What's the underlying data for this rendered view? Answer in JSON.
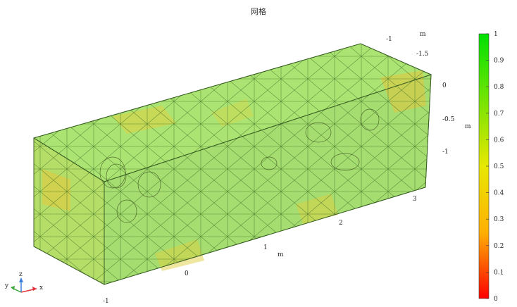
{
  "figure": {
    "title": "网格"
  },
  "axes": {
    "x": {
      "unit": "m",
      "ticks": [
        "-1",
        "0",
        "1",
        "2",
        "3"
      ]
    },
    "y": {
      "unit": "m",
      "ticks": [
        "-1",
        "-1.5"
      ]
    },
    "z": {
      "unit": "m",
      "ticks": [
        "0",
        "-0.5",
        "-1"
      ]
    }
  },
  "triad": {
    "x_label": "x",
    "y_label": "y",
    "z_label": "z"
  },
  "colorbar": {
    "ticks": [
      "1",
      "0.9",
      "0.8",
      "0.7",
      "0.6",
      "0.5",
      "0.4",
      "0.3",
      "0.2",
      "0.1",
      "0"
    ],
    "colors": {
      "top": "#00e000",
      "mid": "#e8e800",
      "bottom": "#ff0000"
    }
  },
  "mesh_colors": {
    "green": "#7fd64a",
    "yellow": "#d9d94a",
    "edge": "#2e5a1a"
  }
}
